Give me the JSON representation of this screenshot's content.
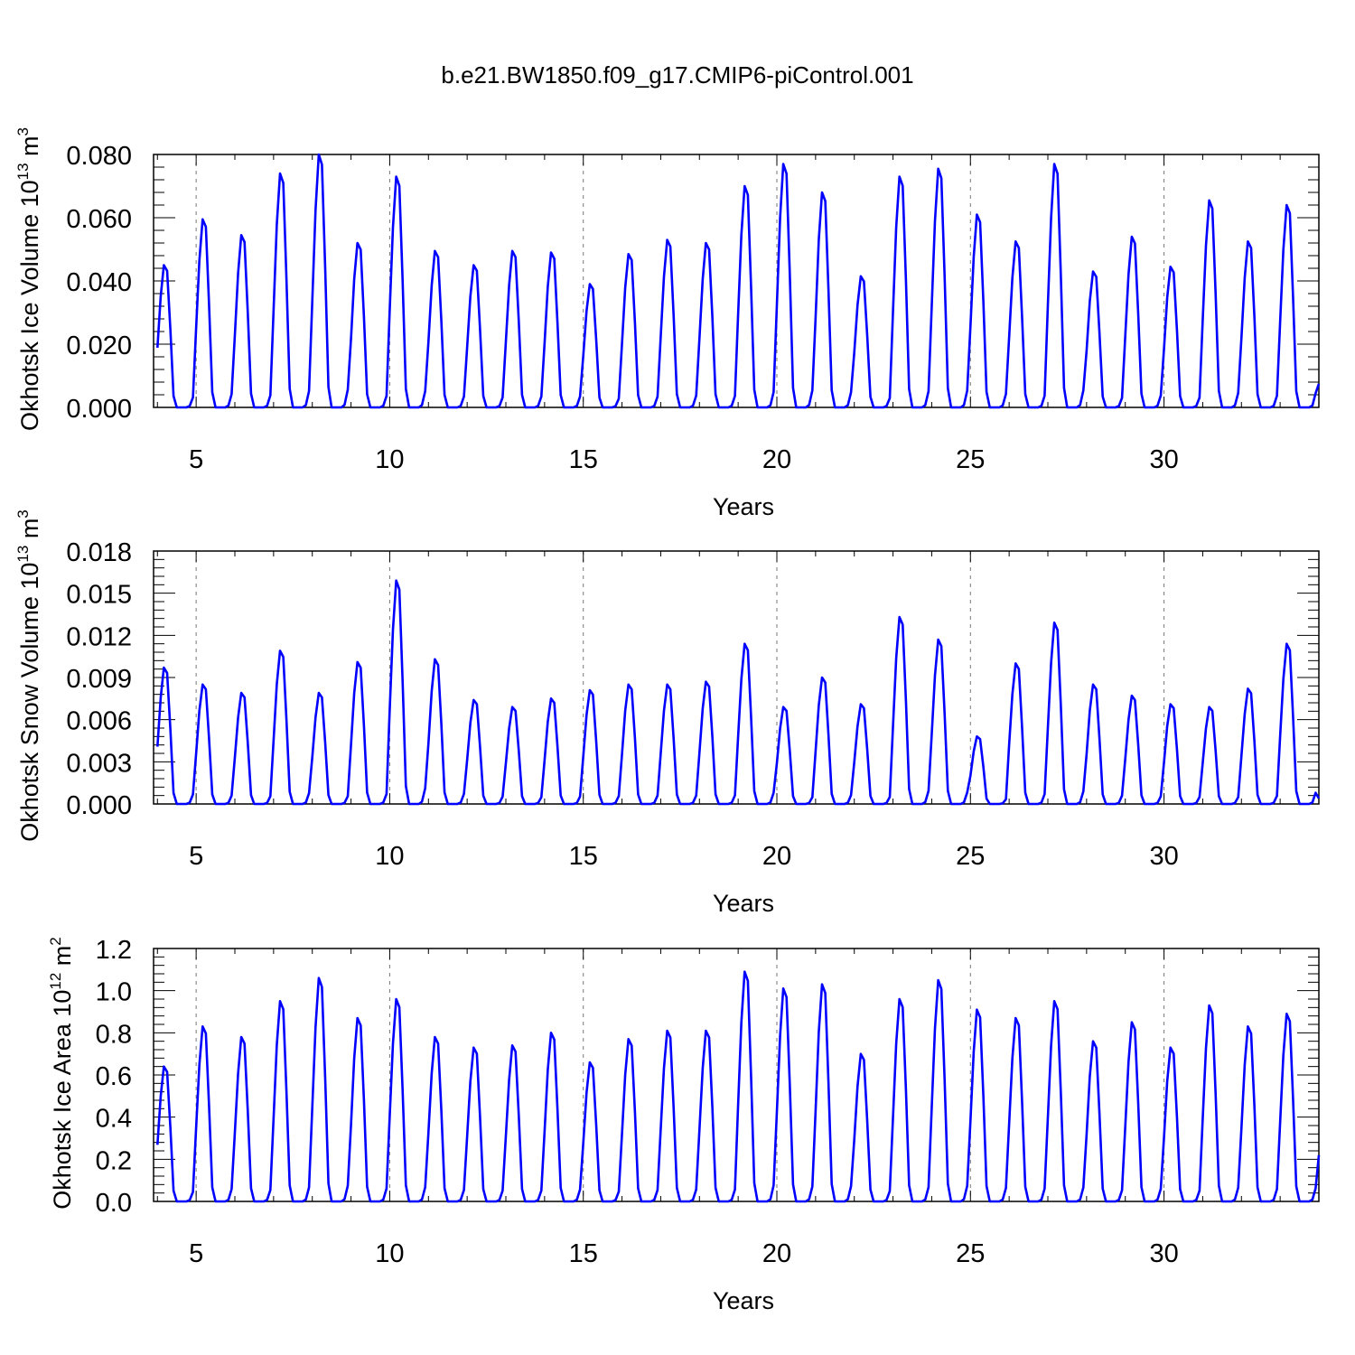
{
  "title": "b.e21.BW1850.f09_g17.CMIP6-piControl.001",
  "colors": {
    "line": "#0000ff",
    "axis": "#000000",
    "grid": "#777777"
  },
  "chart_data": [
    {
      "type": "line",
      "ylabel": {
        "text": "Okhotsk Ice Volume 10",
        "exp": "13",
        "unit": " m",
        "unit_exp": "3"
      },
      "xlabel": "Years",
      "xlim": [
        3.9,
        34
      ],
      "ylim": [
        0.0,
        0.08
      ],
      "yticks": [
        0.0,
        0.02,
        0.04,
        0.06,
        0.08
      ],
      "ytick_labels": [
        "0.000",
        "0.020",
        "0.040",
        "0.060",
        "0.080"
      ],
      "xticks": [
        5,
        10,
        15,
        20,
        25,
        30
      ],
      "xtick_labels": [
        "5",
        "10",
        "15",
        "20",
        "25",
        "30"
      ],
      "grid": "vertical dashed at major x ticks",
      "series": [
        {
          "start_year": 4.0,
          "peaks": [
            0.045,
            0.0595,
            0.0545,
            0.074,
            0.08,
            0.052,
            0.073,
            0.0495,
            0.045,
            0.0495,
            0.049,
            0.039,
            0.0485,
            0.053,
            0.052,
            0.07,
            0.077,
            0.068,
            0.0415,
            0.073,
            0.0755,
            0.061,
            0.0525,
            0.077,
            0.043,
            0.054,
            0.0445,
            0.0655,
            0.0525,
            0.064
          ],
          "end_value": 0.0075
        }
      ]
    },
    {
      "type": "line",
      "ylabel": {
        "text": "Okhotsk Snow Volume 10",
        "exp": "13",
        "unit": " m",
        "unit_exp": "3"
      },
      "xlabel": "Years",
      "xlim": [
        3.9,
        34
      ],
      "ylim": [
        0.0,
        0.018
      ],
      "yticks": [
        0.0,
        0.003,
        0.006,
        0.009,
        0.012,
        0.015,
        0.018
      ],
      "ytick_labels": [
        "0.000",
        "0.003",
        "0.006",
        "0.009",
        "0.012",
        "0.015",
        "0.018"
      ],
      "xticks": [
        5,
        10,
        15,
        20,
        25,
        30
      ],
      "xtick_labels": [
        "5",
        "10",
        "15",
        "20",
        "25",
        "30"
      ],
      "grid": "vertical dashed at major x ticks",
      "series": [
        {
          "start_year": 4.0,
          "peaks": [
            0.0097,
            0.0085,
            0.0079,
            0.0109,
            0.0079,
            0.0101,
            0.0159,
            0.0103,
            0.0074,
            0.0069,
            0.0075,
            0.0081,
            0.0085,
            0.0085,
            0.0087,
            0.0114,
            0.0069,
            0.009,
            0.0071,
            0.0133,
            0.0117,
            0.0048,
            0.01,
            0.0129,
            0.0085,
            0.0077,
            0.0071,
            0.0069,
            0.0082,
            0.0114
          ],
          "end_value": 0.0004
        }
      ]
    },
    {
      "type": "line",
      "ylabel": {
        "text": "Okhotsk Ice Area 10",
        "exp": "12",
        "unit": " m",
        "unit_exp": "2"
      },
      "xlabel": "Years",
      "xlim": [
        3.9,
        34
      ],
      "ylim": [
        0.0,
        1.2
      ],
      "yticks": [
        0.0,
        0.2,
        0.4,
        0.6,
        0.8,
        1.0,
        1.2
      ],
      "ytick_labels": [
        "0.0",
        "0.2",
        "0.4",
        "0.6",
        "0.8",
        "1.0",
        "1.2"
      ],
      "xticks": [
        5,
        10,
        15,
        20,
        25,
        30
      ],
      "xtick_labels": [
        "5",
        "10",
        "15",
        "20",
        "25",
        "30"
      ],
      "grid": "vertical dashed at major x ticks",
      "series": [
        {
          "start_year": 4.0,
          "peaks": [
            0.64,
            0.83,
            0.78,
            0.95,
            1.06,
            0.87,
            0.96,
            0.78,
            0.73,
            0.74,
            0.8,
            0.66,
            0.77,
            0.81,
            0.81,
            1.09,
            1.01,
            1.03,
            0.7,
            0.96,
            1.05,
            0.91,
            0.87,
            0.95,
            0.76,
            0.85,
            0.73,
            0.93,
            0.83,
            0.89
          ],
          "end_value": 0.22
        }
      ]
    }
  ]
}
